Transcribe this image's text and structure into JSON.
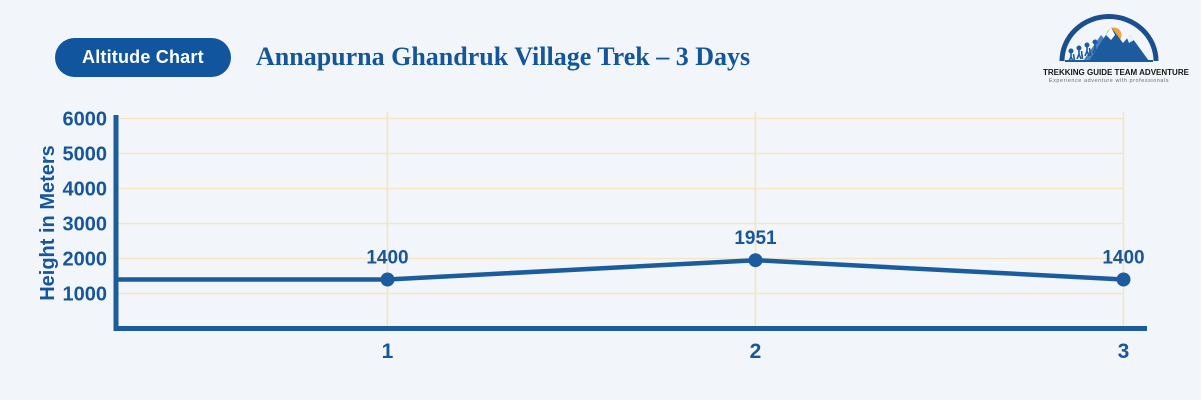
{
  "header": {
    "badge_label": "Altitude Chart",
    "title": "Annapurna Ghandruk Village Trek – 3 Days",
    "logo": {
      "name": "TREKKING GUIDE TEAM ADVENTURE",
      "tagline": "Experience adventure with professionals"
    }
  },
  "colors": {
    "background": "#F2F6FA",
    "primary_blue": "#10559E",
    "line_blue": "#1A5C9E",
    "axis_blue": "#1A5C9E",
    "label_blue": "#17569B",
    "grid_tan": "#F6E5C2",
    "sun_orange": "#F2A43A"
  },
  "chart_data": {
    "type": "line",
    "title": "Annapurna Ghandruk Village Trek – 3 Days",
    "xlabel": "",
    "ylabel": "Height in Meters",
    "categories": [
      "1",
      "2",
      "3"
    ],
    "values": [
      1400,
      1951,
      1400
    ],
    "yticks": [
      1000,
      2000,
      3000,
      4000,
      5000,
      6000
    ],
    "ylim": [
      0,
      6000
    ],
    "grid": true,
    "legend": false,
    "marker": "circle",
    "point_labels_shown": true
  }
}
